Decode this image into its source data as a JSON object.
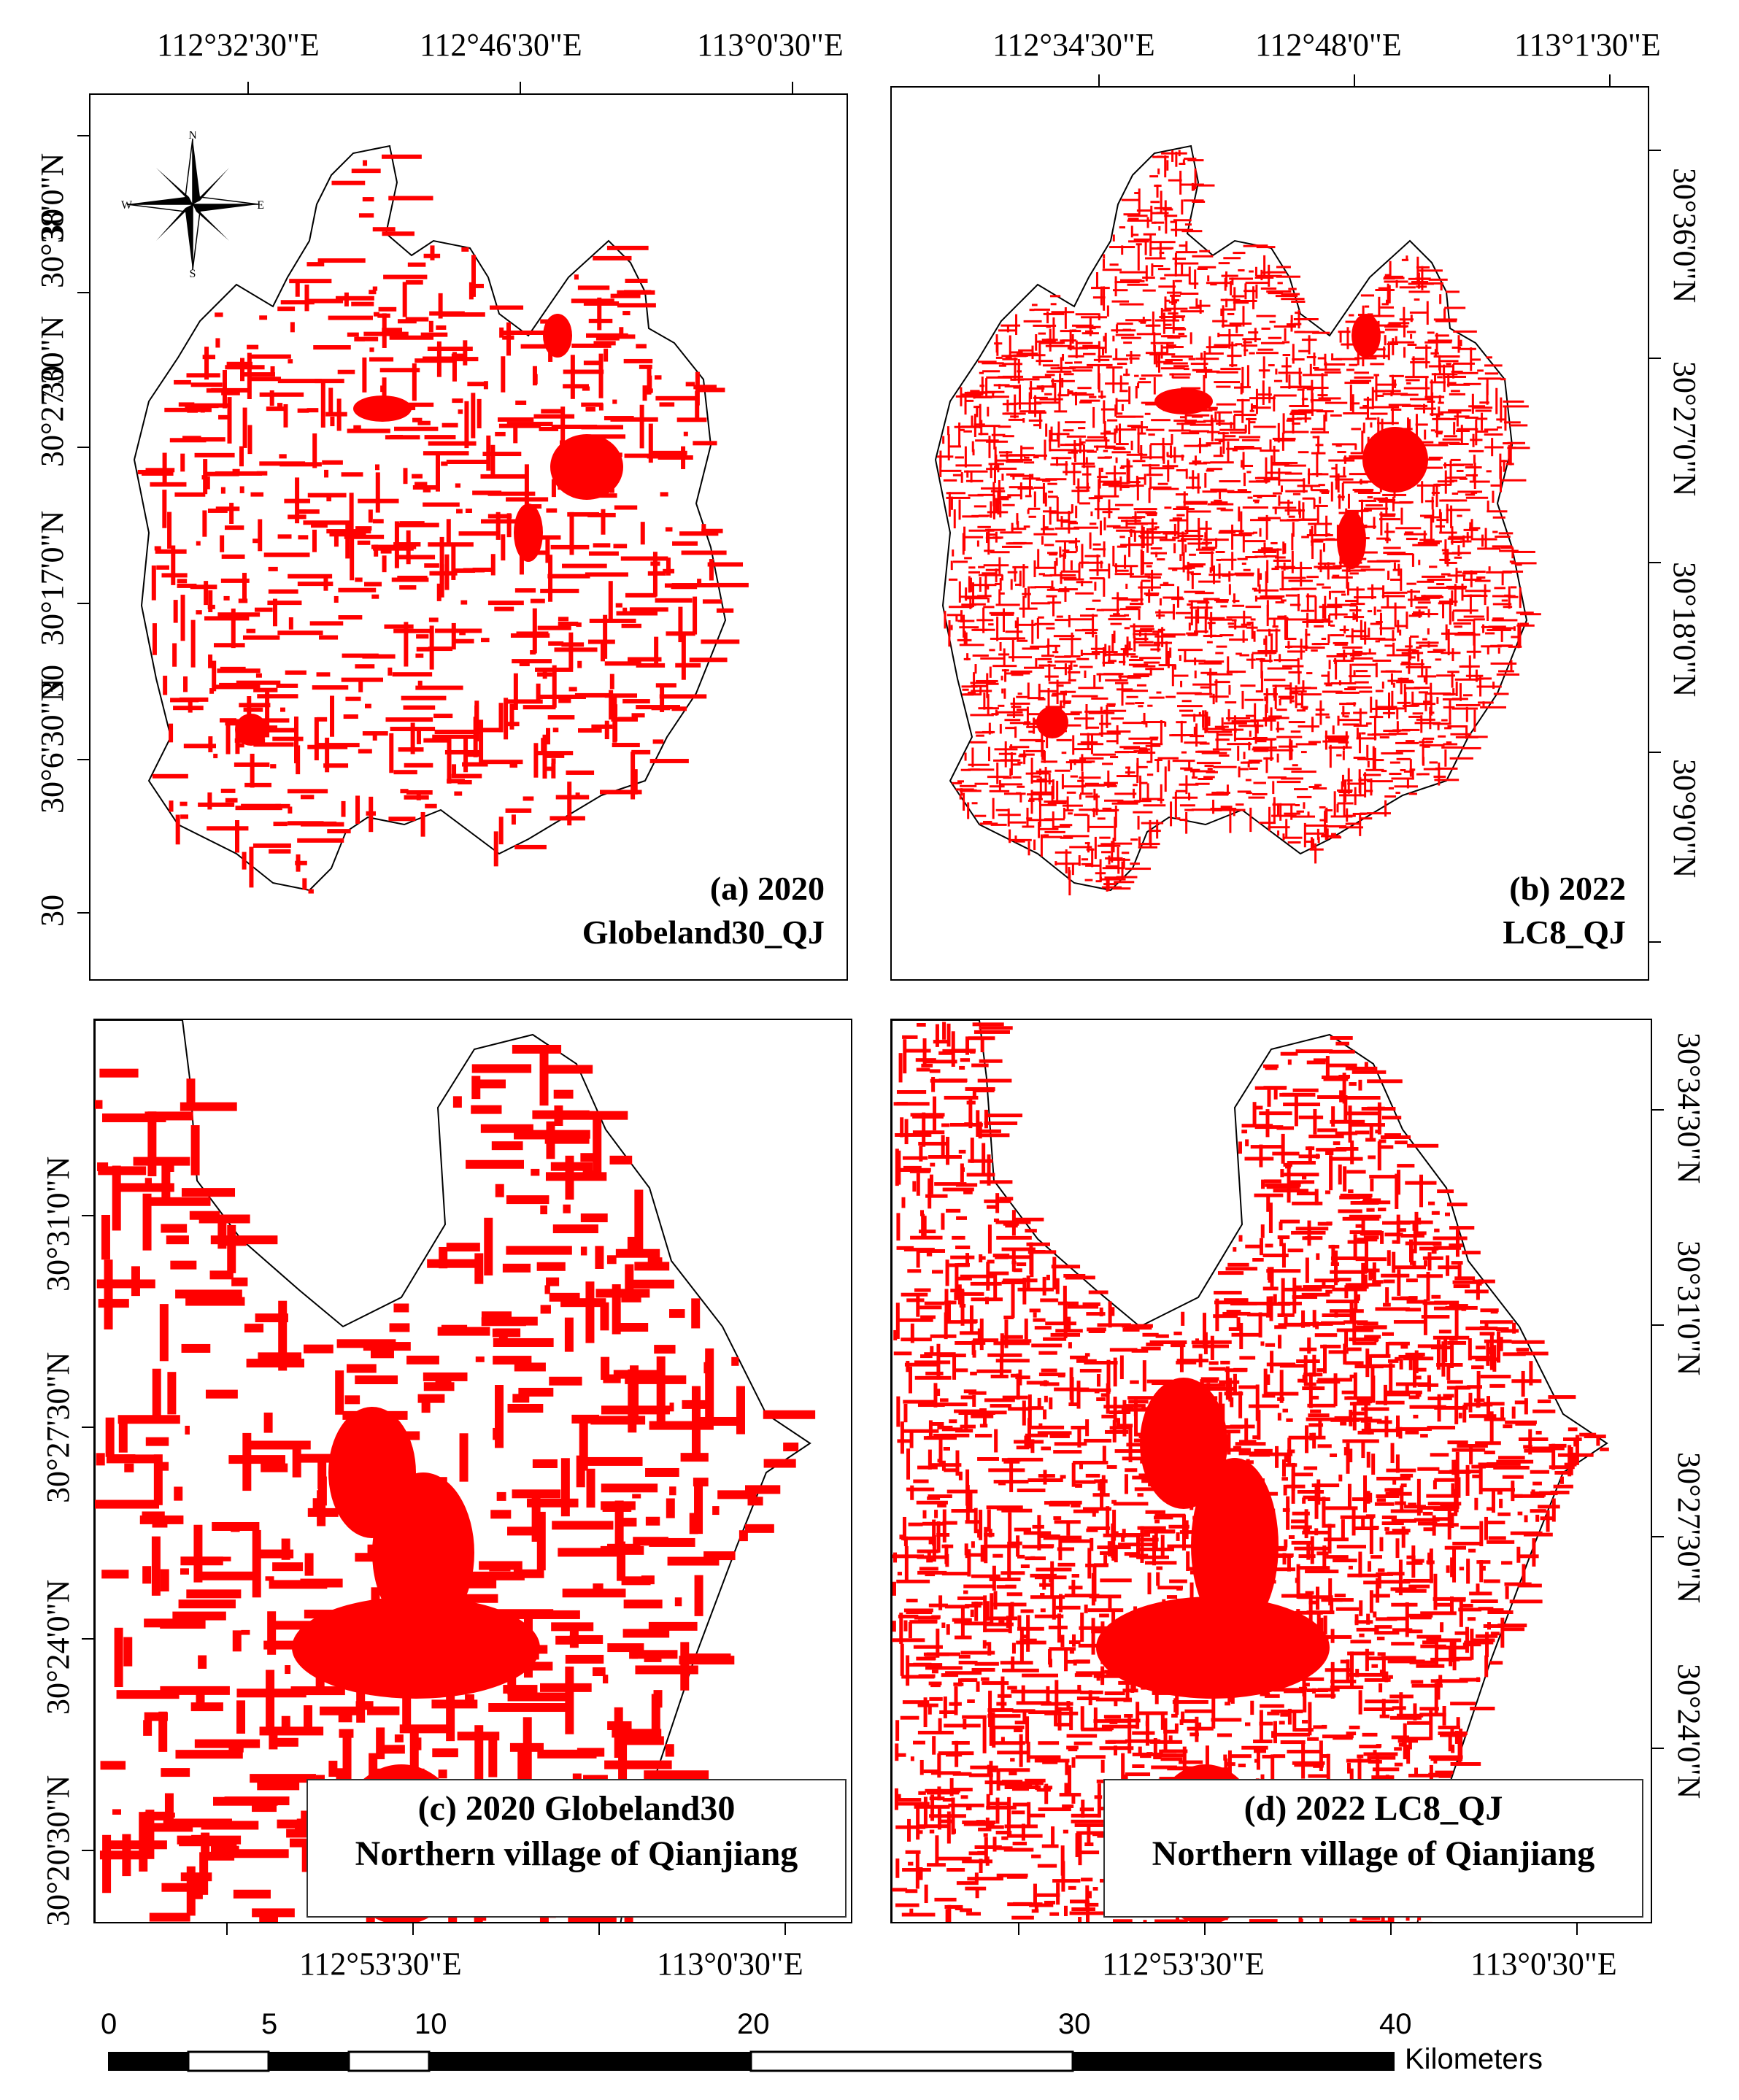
{
  "panels": {
    "a": {
      "title_line1": "(a) 2020",
      "title_line2": "Globeland30_QJ",
      "top_labels": [
        "112°32'30\"E",
        "112°46'30\"E",
        "113°0'30\"E"
      ],
      "left_labels": [
        "30°38'0\"N",
        "30°27'30\"N",
        "30°17'0\"N",
        "30°6'30\"N"
      ],
      "left_partial_labels": [
        "30",
        "30",
        "30",
        "30"
      ]
    },
    "b": {
      "title_line1": "(b) 2022",
      "title_line2": "LC8_QJ",
      "top_labels": [
        "112°34'30\"E",
        "112°48'0\"E",
        "113°1'30\"E"
      ],
      "right_labels": [
        "30°36'0\"N",
        "30°27'0\"N",
        "30°18'0\"N",
        "30°9'0\"N"
      ]
    },
    "c": {
      "title_line1": "(c) 2020 Globeland30",
      "title_line2": "Northern village of Qianjiang",
      "bottom_labels": [
        "112°53'30\"E",
        "113°0'30\"E"
      ],
      "left_labels": [
        "30°31'0\"N",
        "30°27'30\"N",
        "30°24'0\"N",
        "30°20'30\"N"
      ]
    },
    "d": {
      "title_line1": "(d) 2022 LC8_QJ",
      "title_line2": "Northern village of Qianjiang",
      "bottom_labels": [
        "112°53'30\"E",
        "113°0'30\"E"
      ],
      "right_labels": [
        "30°34'30\"N",
        "30°31'0\"N",
        "30°27'30\"N",
        "30°24'0\"N"
      ]
    }
  },
  "compass": {
    "n": "N",
    "s": "S",
    "e": "E",
    "w": "W"
  },
  "scalebar": {
    "labels": [
      "0",
      "5",
      "10",
      "20",
      "30",
      "40"
    ],
    "unit": "Kilometers"
  },
  "colors": {
    "builtup": "#ff0000",
    "outline": "#000000",
    "background": "#ffffff"
  }
}
